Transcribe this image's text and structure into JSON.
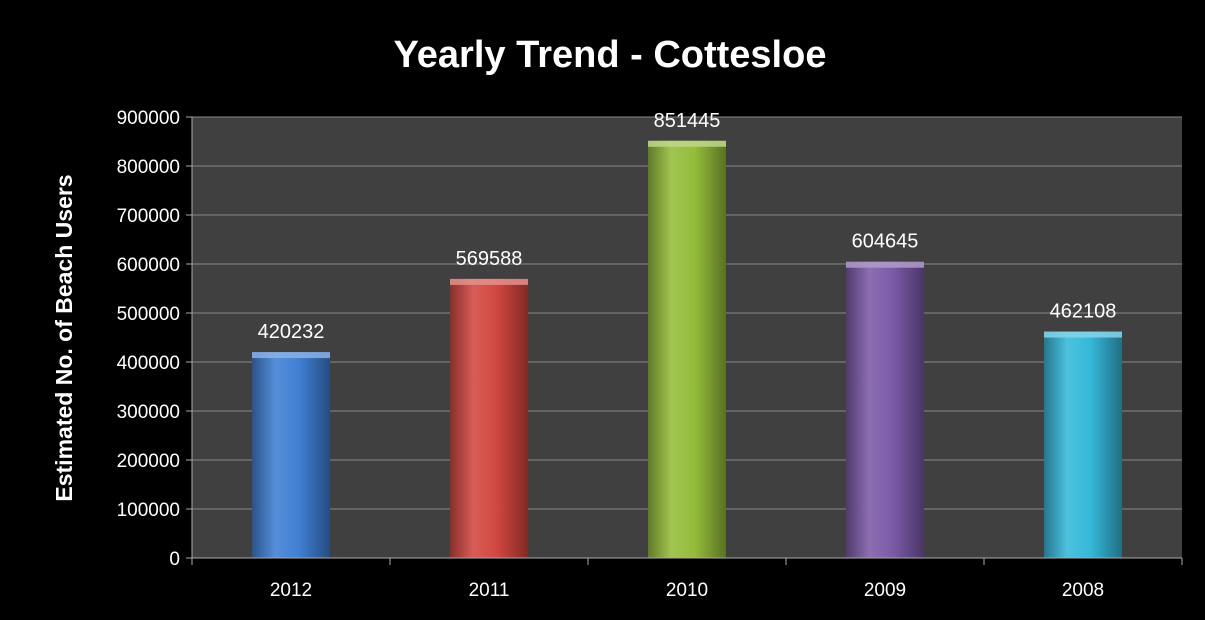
{
  "chart_data": {
    "type": "bar",
    "title": "Yearly Trend - Cottesloe",
    "xlabel": "",
    "ylabel": "Estimated No. of Beach Users",
    "categories": [
      "2012",
      "2011",
      "2010",
      "2009",
      "2008"
    ],
    "values": [
      420232,
      569588,
      851445,
      604645,
      462108
    ],
    "data_labels": [
      "420232",
      "569588",
      "851445",
      "604645",
      "462108"
    ],
    "ylim": [
      0,
      900000
    ],
    "yticks": [
      0,
      100000,
      200000,
      300000,
      400000,
      500000,
      600000,
      700000,
      800000,
      900000
    ],
    "ytick_labels": [
      "0",
      "100000",
      "200000",
      "300000",
      "400000",
      "500000",
      "600000",
      "700000",
      "800000",
      "900000"
    ],
    "grid": true,
    "legend": "none",
    "colors": [
      "#3f7fd4",
      "#d24740",
      "#94bd3a",
      "#7c5aa8",
      "#35b8da"
    ],
    "background_colors": {
      "page": "#000000",
      "plot_area": "#404040",
      "gridline": "#888888"
    }
  }
}
